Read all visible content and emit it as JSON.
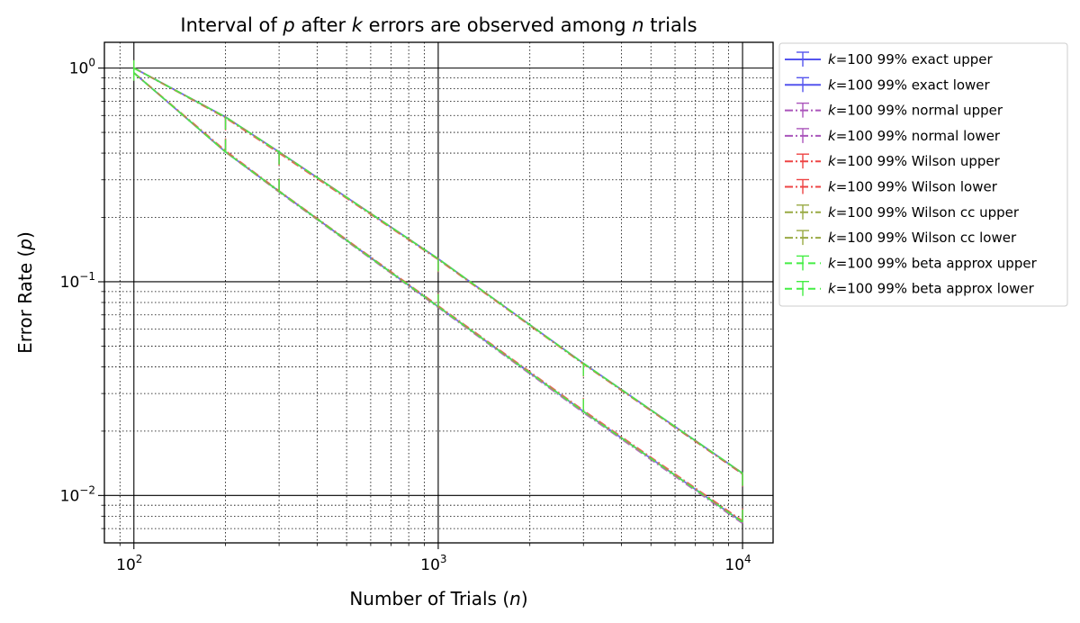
{
  "chart_data": {
    "type": "line",
    "title": {
      "t1": "Interval of ",
      "t2": "p",
      "t3": " after ",
      "t4": "k",
      "t5": " errors are observed among ",
      "t6": "n",
      "t7": " trials"
    },
    "xlabel": {
      "pre": "Number of Trials (",
      "var": "n",
      "post": ")"
    },
    "ylabel": {
      "pre": "Error Rate (",
      "var": "p",
      "post": ")"
    },
    "x_scale": "log",
    "y_scale": "log",
    "xlim": [
      80,
      12600
    ],
    "ylim": [
      0.006,
      1.32
    ],
    "grid": "major solid, minor dotted",
    "legend_position": "outside right",
    "x_ticks": [
      {
        "base": "10",
        "exp": "2",
        "value": 100
      },
      {
        "base": "10",
        "exp": "3",
        "value": 1000
      },
      {
        "base": "10",
        "exp": "4",
        "value": 10000
      }
    ],
    "y_ticks": [
      {
        "base": "10",
        "exp": "0",
        "value": 1
      },
      {
        "base": "10",
        "exp": "−1",
        "value": 0.1
      },
      {
        "base": "10",
        "exp": "−2",
        "value": 0.01
      }
    ],
    "x": [
      100,
      200,
      300,
      1000,
      3000,
      10000
    ],
    "series": [
      {
        "name": "k=100 99% exact upper",
        "k_prefix": "k",
        "label_rest": "=100 99% exact upper",
        "color": "#5555ee",
        "dash": "",
        "y": [
          1.0,
          0.59,
          0.405,
          0.128,
          0.0415,
          0.0127
        ]
      },
      {
        "name": "k=100 99% exact lower",
        "k_prefix": "k",
        "label_rest": "=100 99% exact lower",
        "color": "#5555ee",
        "dash": "",
        "y": [
          0.95,
          0.405,
          0.265,
          0.0765,
          0.0247,
          0.0075
        ]
      },
      {
        "name": "k=100 99% normal upper",
        "k_prefix": "k",
        "label_rest": "=100 99% normal upper",
        "color": "#aa55bb",
        "dash": "9,3,2,3",
        "y": [
          1.0,
          0.59,
          0.405,
          0.128,
          0.0413,
          0.0126
        ]
      },
      {
        "name": "k=100 99% normal lower",
        "k_prefix": "k",
        "label_rest": "=100 99% normal lower",
        "color": "#aa55bb",
        "dash": "9,3,2,3",
        "y": [
          0.95,
          0.405,
          0.263,
          0.0758,
          0.0244,
          0.0074
        ]
      },
      {
        "name": "k=100 99% Wilson upper",
        "k_prefix": "k",
        "label_rest": "=100 99% Wilson upper",
        "color": "#ee4444",
        "dash": "9,3,2,3",
        "y": [
          1.0,
          0.585,
          0.4,
          0.127,
          0.0412,
          0.0126
        ]
      },
      {
        "name": "k=100 99% Wilson lower",
        "k_prefix": "k",
        "label_rest": "=100 99% Wilson lower",
        "color": "#ee4444",
        "dash": "9,3,2,3",
        "y": [
          0.95,
          0.41,
          0.266,
          0.0772,
          0.025,
          0.0076
        ]
      },
      {
        "name": "k=100 99% Wilson cc upper",
        "k_prefix": "k",
        "label_rest": "=100 99% Wilson cc upper",
        "color": "#99aa44",
        "dash": "9,3,2,3",
        "y": [
          1.0,
          0.59,
          0.405,
          0.128,
          0.0414,
          0.0127
        ]
      },
      {
        "name": "k=100 99% Wilson cc lower",
        "k_prefix": "k",
        "label_rest": "=100 99% Wilson cc lower",
        "color": "#99aa44",
        "dash": "9,3,2,3",
        "y": [
          0.95,
          0.405,
          0.264,
          0.0764,
          0.0247,
          0.0075
        ]
      },
      {
        "name": "k=100 99% beta approx upper",
        "k_prefix": "k",
        "label_rest": "=100 99% beta approx upper",
        "color": "#44ee44",
        "dash": "8,5",
        "y": [
          1.0,
          0.59,
          0.405,
          0.128,
          0.0415,
          0.0127
        ]
      },
      {
        "name": "k=100 99% beta approx lower",
        "k_prefix": "k",
        "label_rest": "=100 99% beta approx lower",
        "color": "#44ee44",
        "dash": "8,5",
        "y": [
          0.95,
          0.405,
          0.265,
          0.0765,
          0.0247,
          0.0075
        ]
      }
    ]
  }
}
